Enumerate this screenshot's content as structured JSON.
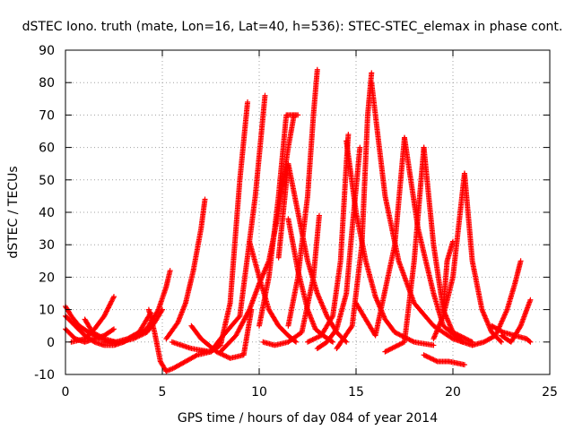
{
  "chart_data": {
    "type": "scatter",
    "title": "dSTEC Iono. truth (mate, Lon=16, Lat=40, h=536): STEC-STEC_elemax in phase cont.",
    "xlabel": "GPS time / hours of day 084 of year 2014",
    "ylabel": "dSTEC  / TECUs",
    "xlim": [
      0,
      25
    ],
    "ylim": [
      -10,
      90
    ],
    "xticks": [
      "0",
      "5",
      "10",
      "15",
      "20",
      "25"
    ],
    "yticks": [
      "-10",
      "0",
      "10",
      "20",
      "30",
      "40",
      "50",
      "60",
      "70",
      "80",
      "90"
    ],
    "grid": true,
    "marker": "+",
    "color": "#ff0000",
    "series": [
      {
        "x": [
          0.0,
          0.5,
          1.0,
          1.5,
          2.0,
          2.5
        ],
        "y": [
          4,
          1,
          0,
          1,
          2,
          4
        ]
      },
      {
        "x": [
          0.0,
          0.3,
          0.7,
          1.2,
          1.8,
          2.4
        ],
        "y": [
          11,
          8,
          5,
          3,
          1,
          0
        ]
      },
      {
        "x": [
          0.0,
          0.5,
          1.0,
          1.5,
          2.0,
          2.5,
          3.0
        ],
        "y": [
          8,
          5,
          2,
          0,
          -1,
          -1,
          0
        ]
      },
      {
        "x": [
          0.3,
          1.0,
          1.5,
          2.0,
          2.5
        ],
        "y": [
          0,
          1,
          4,
          8,
          14
        ]
      },
      {
        "x": [
          1.0,
          1.4,
          2.0,
          2.6,
          3.2,
          3.8,
          4.4
        ],
        "y": [
          7,
          3,
          1,
          0,
          1,
          3,
          9
        ]
      },
      {
        "x": [
          2.0,
          2.8,
          3.5,
          4.2,
          4.6,
          5.0
        ],
        "y": [
          0,
          0,
          1,
          3,
          6,
          10
        ]
      },
      {
        "x": [
          3.0,
          3.6,
          4.2,
          4.8,
          5.2,
          5.4
        ],
        "y": [
          0,
          2,
          4,
          10,
          17,
          22
        ]
      },
      {
        "x": [
          4.3,
          4.6,
          4.9,
          5.2,
          5.6,
          6.2,
          6.8,
          7.5
        ],
        "y": [
          10,
          3,
          -6,
          -9,
          -8,
          -6,
          -4,
          -3
        ]
      },
      {
        "x": [
          5.2,
          5.8,
          6.2,
          6.6,
          7.0,
          7.2
        ],
        "y": [
          1,
          6,
          12,
          22,
          35,
          44
        ]
      },
      {
        "x": [
          5.5,
          6.5,
          7.5,
          8.0,
          8.5,
          9.0,
          9.4
        ],
        "y": [
          0,
          -2,
          -3,
          -1,
          12,
          50,
          74
        ]
      },
      {
        "x": [
          6.5,
          7.0,
          7.8,
          8.5,
          9.2,
          9.6
        ],
        "y": [
          5,
          1,
          -3,
          -5,
          -4,
          10
        ]
      },
      {
        "x": [
          7.0,
          7.5,
          8.0,
          9.0,
          9.8,
          10.3
        ],
        "y": [
          -3,
          -3,
          1,
          8,
          45,
          76
        ]
      },
      {
        "x": [
          8.0,
          8.8,
          9.5,
          10.0,
          10.5,
          11.0,
          11.5,
          11.8
        ],
        "y": [
          -3,
          2,
          10,
          18,
          25,
          40,
          60,
          70
        ]
      },
      {
        "x": [
          9.5,
          10.0,
          10.5,
          11.0,
          11.5,
          11.9
        ],
        "y": [
          31,
          20,
          10,
          5,
          2,
          0
        ]
      },
      {
        "x": [
          10.0,
          10.5,
          11.0,
          11.4,
          12.0
        ],
        "y": [
          5,
          20,
          45,
          70,
          70
        ]
      },
      {
        "x": [
          10.2,
          10.8,
          11.5,
          12.2,
          12.8,
          13.1
        ],
        "y": [
          0,
          -1,
          0,
          3,
          20,
          39
        ]
      },
      {
        "x": [
          11.5,
          12.0,
          12.5,
          12.9,
          13.3,
          13.8
        ],
        "y": [
          38,
          22,
          10,
          4,
          2,
          0
        ]
      },
      {
        "x": [
          11.5,
          12.0,
          12.5,
          12.8,
          13.0
        ],
        "y": [
          5,
          20,
          45,
          70,
          84
        ]
      },
      {
        "x": [
          11.0,
          11.5,
          12.0,
          12.5,
          13.0,
          13.5,
          14.0,
          14.5
        ],
        "y": [
          26,
          55,
          40,
          25,
          15,
          8,
          3,
          0
        ]
      },
      {
        "x": [
          12.5,
          13.2,
          13.8,
          14.2,
          14.5,
          14.6
        ],
        "y": [
          0,
          2,
          8,
          25,
          55,
          64
        ]
      },
      {
        "x": [
          13.0,
          13.5,
          14.0,
          14.5,
          14.8,
          15.2
        ],
        "y": [
          -2,
          0,
          4,
          15,
          35,
          60
        ]
      },
      {
        "x": [
          14.5,
          15.0,
          15.5,
          16.0,
          16.5,
          17.0,
          18.0,
          19.0
        ],
        "y": [
          62,
          40,
          25,
          14,
          7,
          3,
          0,
          -1
        ]
      },
      {
        "x": [
          14.0,
          14.8,
          15.3,
          15.6,
          15.8
        ],
        "y": [
          -2,
          5,
          30,
          70,
          83
        ]
      },
      {
        "x": [
          15.8,
          16.5,
          17.2,
          18.0,
          19.0,
          20.0,
          21.0
        ],
        "y": [
          80,
          45,
          25,
          12,
          5,
          1,
          -1
        ]
      },
      {
        "x": [
          15.0,
          16.0,
          17.0,
          17.5
        ],
        "y": [
          12,
          2,
          30,
          63
        ]
      },
      {
        "x": [
          16.5,
          17.5,
          18.0,
          18.5
        ],
        "y": [
          -3,
          0,
          25,
          60
        ]
      },
      {
        "x": [
          17.5,
          18.2,
          19.0,
          19.5,
          20.5
        ],
        "y": [
          63,
          35,
          15,
          5,
          0
        ]
      },
      {
        "x": [
          18.5,
          19.0,
          19.5,
          20.0,
          21.0
        ],
        "y": [
          60,
          30,
          10,
          3,
          0
        ]
      },
      {
        "x": [
          19.0,
          19.5,
          20.0,
          20.6
        ],
        "y": [
          1,
          8,
          20,
          52
        ]
      },
      {
        "x": [
          18.5,
          19.2,
          19.8,
          20.6
        ],
        "y": [
          -4,
          -6,
          -6,
          -7
        ]
      },
      {
        "x": [
          20.6,
          21.0,
          21.5,
          22.0,
          22.5
        ],
        "y": [
          52,
          25,
          10,
          3,
          0
        ]
      },
      {
        "x": [
          21.0,
          21.6,
          22.2,
          22.8,
          23.2,
          23.5
        ],
        "y": [
          -1,
          0,
          2,
          10,
          18,
          25
        ]
      },
      {
        "x": [
          22.0,
          22.6,
          23.2,
          23.8,
          24.0
        ],
        "y": [
          5,
          3,
          2,
          1,
          0
        ]
      },
      {
        "x": [
          22.5,
          23.0,
          23.5,
          24.0
        ],
        "y": [
          2,
          0,
          5,
          13
        ]
      },
      {
        "x": [
          19.5,
          19.7,
          20.0
        ],
        "y": [
          10,
          25,
          31
        ]
      }
    ]
  }
}
